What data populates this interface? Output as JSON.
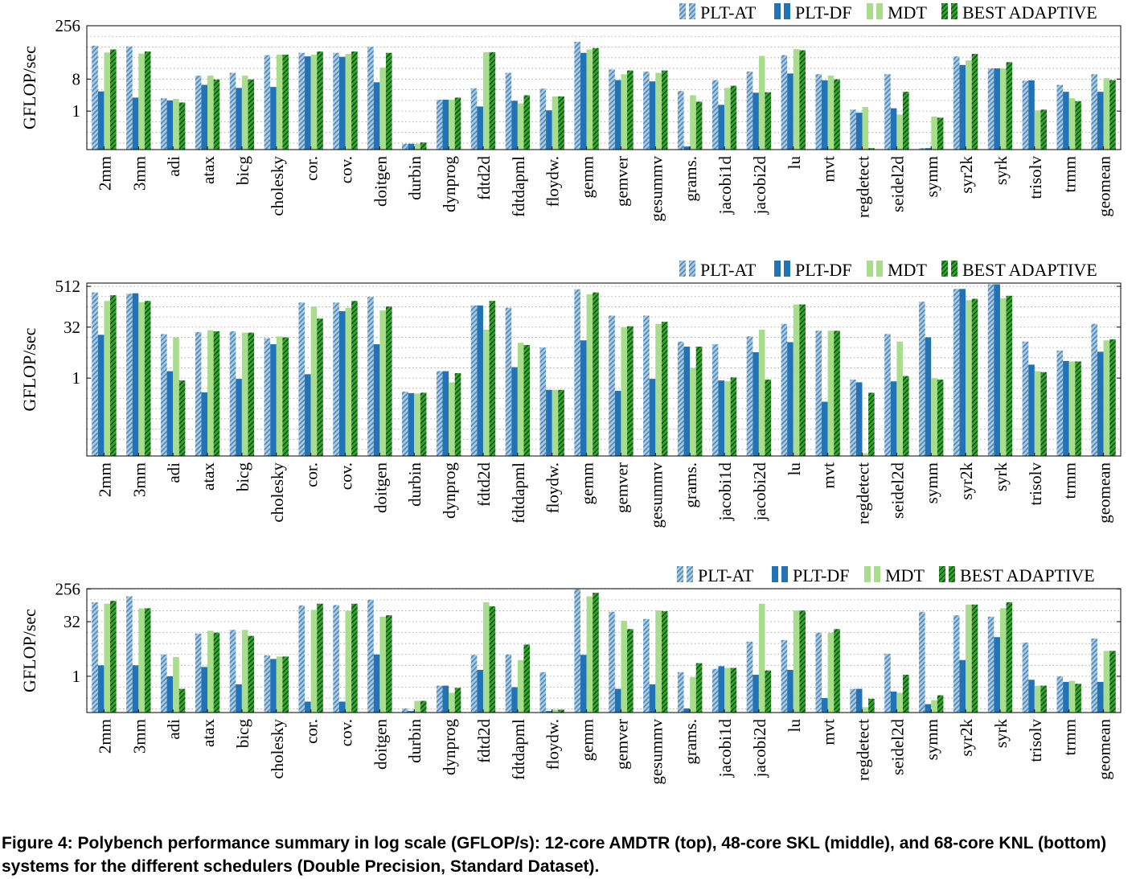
{
  "caption": "Figure 4: Polybench performance summary in log scale (GFLOP/s): 12-core AMDTR (top), 48-core SKL (middle), and 68-core KNL (bottom) systems for the different schedulers (Double Precision, Standard Dataset).",
  "colors": {
    "plt_at": "#a9c9e0",
    "plt_at_hatch": "#4f86b8",
    "plt_df": "#2273b5",
    "mdt": "#a8dd8c",
    "best_adaptive": "#35a42e",
    "best_adaptive_hatch": "#0f4d12",
    "grid": "#9a9a9a"
  },
  "chart_data": [
    {
      "type": "bar",
      "system": "12-core AMDTR",
      "scale": "log2",
      "ylabel": "GFLOP/sec",
      "ytick_labels": [
        "1",
        "8",
        "256"
      ],
      "ytick_values": [
        1,
        8,
        256
      ],
      "ylim": [
        0.082,
        256
      ],
      "grid": true,
      "legend": "top-right",
      "categories": [
        "2mm",
        "3mm",
        "adi",
        "atax",
        "bicg",
        "cholesky",
        "cor.",
        "cov.",
        "doitgen",
        "durbin",
        "dynprog",
        "fdtd2d",
        "fdtdapml",
        "floydw.",
        "gemm",
        "gemver",
        "gesummv",
        "grams.",
        "jacobi1d",
        "jacobi2d",
        "lu",
        "mvt",
        "regdetect",
        "seidel2d",
        "symm",
        "syr2k",
        "syrk",
        "trisolv",
        "trmm",
        "geomean"
      ],
      "series": [
        {
          "name": "PLT-AT",
          "values": [
            70,
            67,
            2.3,
            10,
            12,
            38,
            44,
            44,
            65,
            0.12,
            2.1,
            4.4,
            12,
            4.3,
            90,
            15,
            13,
            3.7,
            7.5,
            13,
            38,
            11,
            1.1,
            11,
            0.09,
            35,
            16,
            7.2,
            5.5,
            11
          ]
        },
        {
          "name": "PLT-DF",
          "values": [
            3.6,
            2.4,
            2.0,
            5.5,
            4.5,
            4.8,
            35,
            34,
            6.5,
            0.12,
            2.1,
            1.35,
            1.95,
            1.05,
            44,
            7.5,
            6.9,
            0.1,
            1.5,
            3.3,
            11.5,
            7.4,
            0.9,
            1.2,
            0.09,
            20,
            16,
            7.4,
            3.5,
            3.5
          ]
        },
        {
          "name": "MDT",
          "values": [
            45,
            42,
            2.2,
            10,
            10,
            39,
            39,
            41,
            17,
            0.12,
            2.1,
            46,
            1.65,
            2.6,
            55,
            11,
            12,
            2.8,
            4.5,
            36,
            56,
            10,
            1.3,
            0.8,
            0.7,
            27,
            16,
            1.05,
            2.3,
            8.5
          ]
        },
        {
          "name": "BEST ADAPTIVE",
          "values": [
            55,
            48,
            1.75,
            7.8,
            7.8,
            39,
            48,
            48,
            44,
            0.13,
            2.4,
            46,
            2.8,
            2.6,
            60,
            14,
            14,
            1.85,
            5.2,
            3.4,
            52,
            7.9,
            0.09,
            3.5,
            0.65,
            41,
            24,
            1.1,
            1.9,
            7.5
          ]
        }
      ]
    },
    {
      "type": "bar",
      "system": "48-core SKL",
      "scale": "log2",
      "ylabel": "GFLOP/sec",
      "ytick_labels": [
        "1",
        "32",
        "512"
      ],
      "ytick_values": [
        1,
        32,
        512
      ],
      "ylim": [
        0.005,
        640
      ],
      "grid": true,
      "legend": "top-right",
      "categories": [
        "2mm",
        "3mm",
        "adi",
        "atax",
        "bicg",
        "cholesky",
        "cor.",
        "cov.",
        "doitgen",
        "durbin",
        "dynprog",
        "fdtd2d",
        "fdtdapml",
        "floydw.",
        "gemm",
        "gemver",
        "gesummv",
        "grams.",
        "jacobi1d",
        "jacobi2d",
        "lu",
        "mvt",
        "regdetect",
        "seidel2d",
        "symm",
        "syr2k",
        "syrk",
        "trisolv",
        "trmm",
        "geomean"
      ],
      "series": [
        {
          "name": "PLT-AT",
          "values": [
            340,
            310,
            20,
            23,
            24,
            15,
            170,
            170,
            250,
            0.4,
            1.6,
            140,
            120,
            8,
            420,
            70,
            70,
            12,
            10,
            17,
            40,
            25,
            0.9,
            20,
            180,
            430,
            590,
            12,
            6.5,
            40
          ]
        },
        {
          "name": "PLT-DF",
          "values": [
            19,
            320,
            1.6,
            0.38,
            0.95,
            10,
            1.3,
            95,
            10,
            0.36,
            1.6,
            140,
            2.1,
            0.45,
            13,
            0.42,
            0.95,
            8.5,
            0.85,
            5.8,
            11.5,
            0.2,
            0.75,
            0.8,
            16,
            430,
            590,
            2.5,
            3.2,
            6
          ]
        },
        {
          "name": "MDT",
          "values": [
            190,
            175,
            16,
            26,
            22,
            17,
            130,
            120,
            100,
            0.35,
            0.75,
            27,
            11,
            0.45,
            300,
            32,
            40,
            2,
            0.8,
            27,
            150,
            25,
            0.006,
            12,
            1,
            200,
            230,
            1.6,
            3.1,
            13
          ]
        },
        {
          "name": "BEST ADAPTIVE",
          "values": [
            280,
            190,
            0.85,
            24,
            22,
            16,
            57,
            190,
            130,
            0.37,
            1.4,
            190,
            9.5,
            0.45,
            340,
            34,
            46,
            8.5,
            1.05,
            0.9,
            150,
            25,
            0.37,
            1.15,
            0.9,
            220,
            270,
            1.5,
            3.1,
            14
          ]
        }
      ]
    },
    {
      "type": "bar",
      "system": "68-core KNL",
      "scale": "log2",
      "ylabel": "GFLOP/sec",
      "ytick_labels": [
        "1",
        "32",
        "256"
      ],
      "ytick_values": [
        1,
        32,
        256
      ],
      "ylim": [
        0.1,
        260
      ],
      "grid": true,
      "legend": "top-right",
      "categories": [
        "2mm",
        "3mm",
        "adi",
        "atax",
        "bicg",
        "cholesky",
        "cor.",
        "cov.",
        "doitgen",
        "durbin",
        "dynprog",
        "fdtd2d",
        "fdtdapml",
        "floydw.",
        "gemm",
        "gemver",
        "gesummv",
        "grams.",
        "jacobi1d",
        "jacobi2d",
        "lu",
        "mvt",
        "regdetect",
        "seidel2d",
        "symm",
        "syr2k",
        "syrk",
        "trisolv",
        "trmm",
        "geomean"
      ],
      "series": [
        {
          "name": "PLT-AT",
          "values": [
            110,
            160,
            4,
            15,
            19,
            3.8,
            90,
            92,
            130,
            0.13,
            0.55,
            3.9,
            4,
            1.3,
            250,
            60,
            38,
            1.3,
            1.6,
            9,
            10,
            16,
            0.45,
            4.2,
            60,
            48,
            44,
            8.5,
            1,
            11
          ]
        },
        {
          "name": "PLT-DF",
          "values": [
            2,
            2,
            1,
            1.8,
            0.6,
            3,
            0.2,
            0.2,
            4,
            0.11,
            0.55,
            1.5,
            0.5,
            0.11,
            3.9,
            0.45,
            0.6,
            0.13,
            1.9,
            1.1,
            1.5,
            0.25,
            0.45,
            0.38,
            0.17,
            2.8,
            12,
            0.8,
            0.7,
            0.7
          ]
        },
        {
          "name": "MDT",
          "values": [
            100,
            74,
            3.4,
            18,
            19,
            3.5,
            68,
            64,
            44,
            0.21,
            0.35,
            110,
            2.8,
            0.12,
            160,
            34,
            66,
            0.95,
            1.7,
            100,
            65,
            16,
            0.14,
            0.35,
            0.22,
            95,
            75,
            0.55,
            0.75,
            5
          ]
        },
        {
          "name": "BEST ADAPTIVE",
          "values": [
            120,
            75,
            0.45,
            16,
            13,
            3.5,
            100,
            100,
            48,
            0.21,
            0.48,
            85,
            7.5,
            0.12,
            200,
            20,
            62,
            2.3,
            1.7,
            1.45,
            65,
            20,
            0.24,
            1.1,
            0.3,
            95,
            110,
            0.55,
            0.62,
            5
          ]
        }
      ]
    }
  ]
}
